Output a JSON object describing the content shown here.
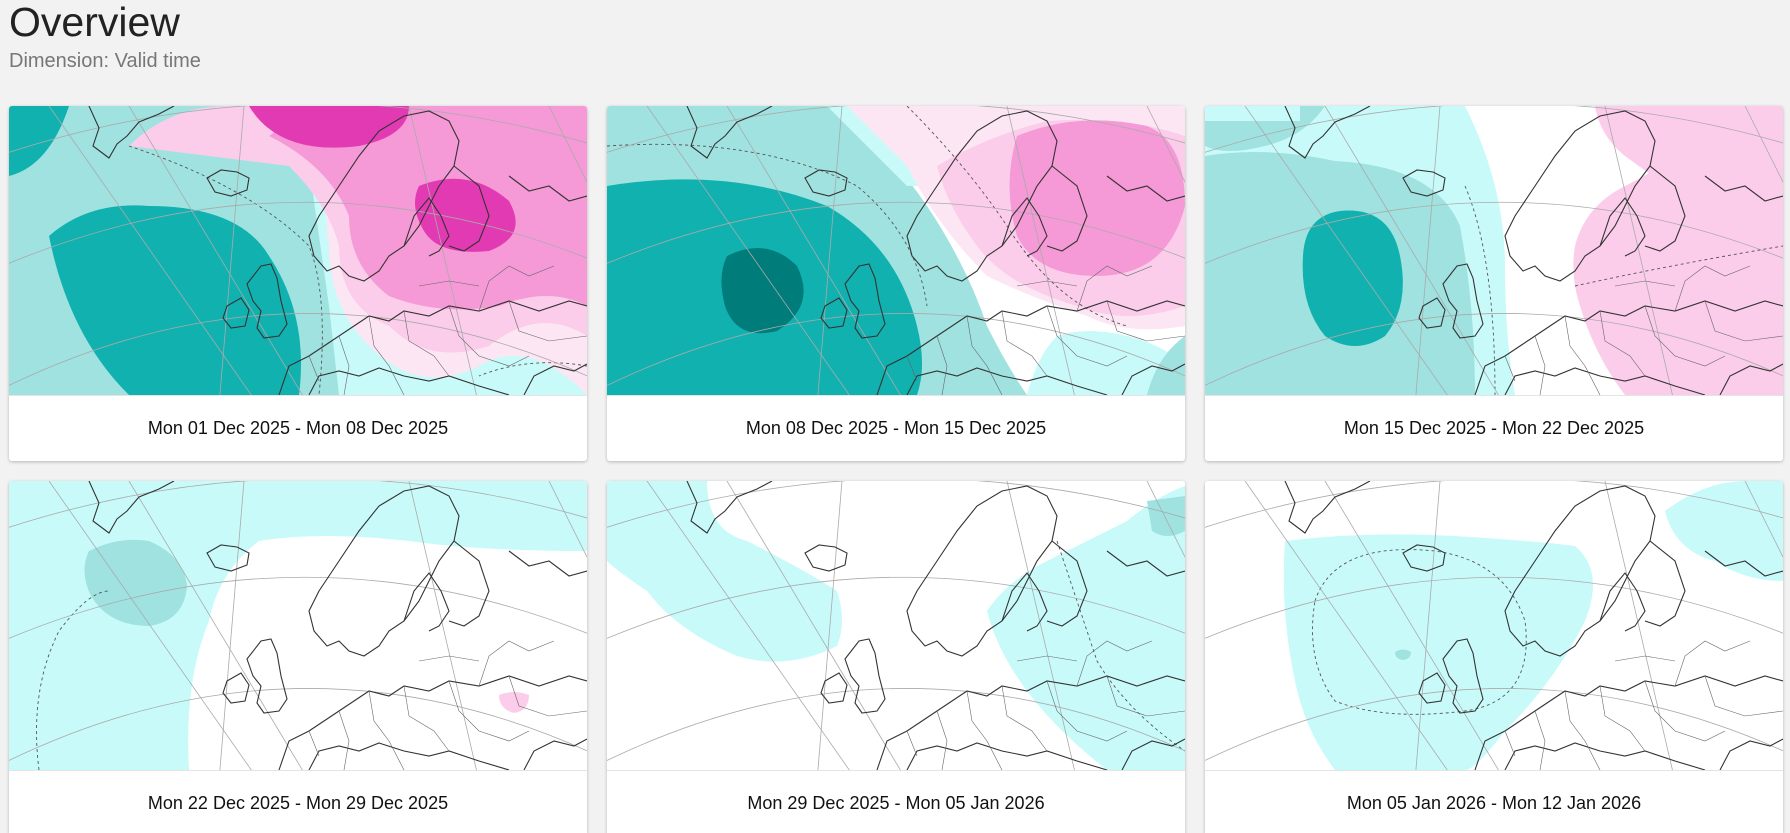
{
  "page": {
    "title": "Overview",
    "subtitle": "Dimension: Valid time"
  },
  "colors": {
    "teal_dark": "#007d7a",
    "teal": "#11b1b0",
    "teal_light": "#9fe2e0",
    "cyan_pale": "#c9fafa",
    "magenta_dark": "#e23ab2",
    "magenta": "#f59ad6",
    "magenta_light": "#fbcdea",
    "magenta_pale": "#fde6f4"
  },
  "maps": [
    {
      "label": "Mon 01 Dec 2025 - Mon 08 Dec 2025"
    },
    {
      "label": "Mon 08 Dec 2025 - Mon 15 Dec 2025"
    },
    {
      "label": "Mon 15 Dec 2025 - Mon 22 Dec 2025"
    },
    {
      "label": "Mon 22 Dec 2025 - Mon 29 Dec 2025"
    },
    {
      "label": "Mon 29 Dec 2025 - Mon 05 Jan 2026"
    },
    {
      "label": "Mon 05 Jan 2026 - Mon 12 Jan 2026"
    }
  ]
}
